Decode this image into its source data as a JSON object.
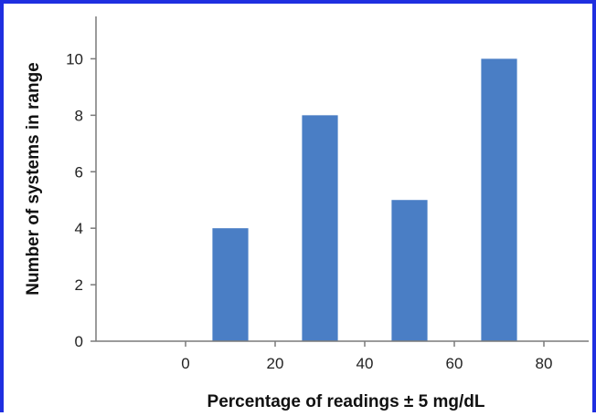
{
  "chart_data": {
    "type": "bar",
    "title": "",
    "xlabel": "Percentage of readings ± 5 mg/dL",
    "ylabel": "Number of systems in range",
    "x": [
      10,
      30,
      50,
      70
    ],
    "values": [
      4,
      8,
      5,
      10
    ],
    "xlim": [
      -20,
      90
    ],
    "ylim": [
      0,
      11.5
    ],
    "xticks": [
      0,
      20,
      40,
      60,
      80
    ],
    "yticks": [
      0,
      2,
      4,
      6,
      8,
      10
    ],
    "bar_width": 8,
    "bar_color": "#4a7ec5",
    "grid": false,
    "legend": "none"
  },
  "frame_color": "#1f2fe0"
}
